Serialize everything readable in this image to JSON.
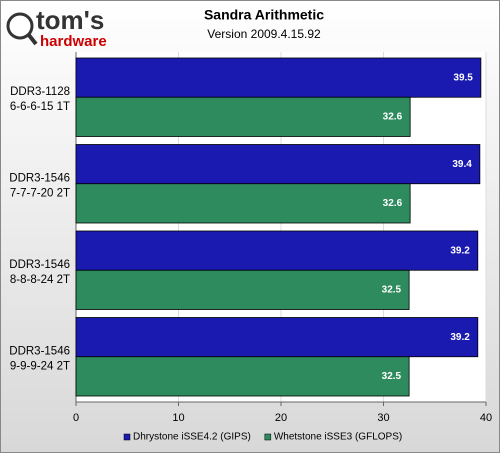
{
  "logo": {
    "name": "tom's",
    "sub": "hardware"
  },
  "chart_data": {
    "type": "hbar",
    "title": "Sandra Arithmetic",
    "subtitle": "Version 2009.4.15.92",
    "categories": [
      [
        "DDR3-1128",
        "6-6-6-15 1T"
      ],
      [
        "DDR3-1546",
        "7-7-7-20 2T"
      ],
      [
        "DDR3-1546",
        "8-8-8-24 2T"
      ],
      [
        "DDR3-1546",
        "9-9-9-24 2T"
      ]
    ],
    "series": [
      {
        "name": "Dhrystone iSSE4.2 (GIPS)",
        "color": "#1a1ab0",
        "values": [
          39.5,
          39.4,
          39.2,
          39.2
        ]
      },
      {
        "name": "Whetstone iSSE3 (GFLOPS)",
        "color": "#2e8b5e",
        "values": [
          32.6,
          32.6,
          32.5,
          32.5
        ]
      }
    ],
    "xlim": [
      0,
      40
    ],
    "xticks": [
      0,
      10,
      20,
      30,
      40
    ],
    "grid": true,
    "legend": "bottom"
  }
}
